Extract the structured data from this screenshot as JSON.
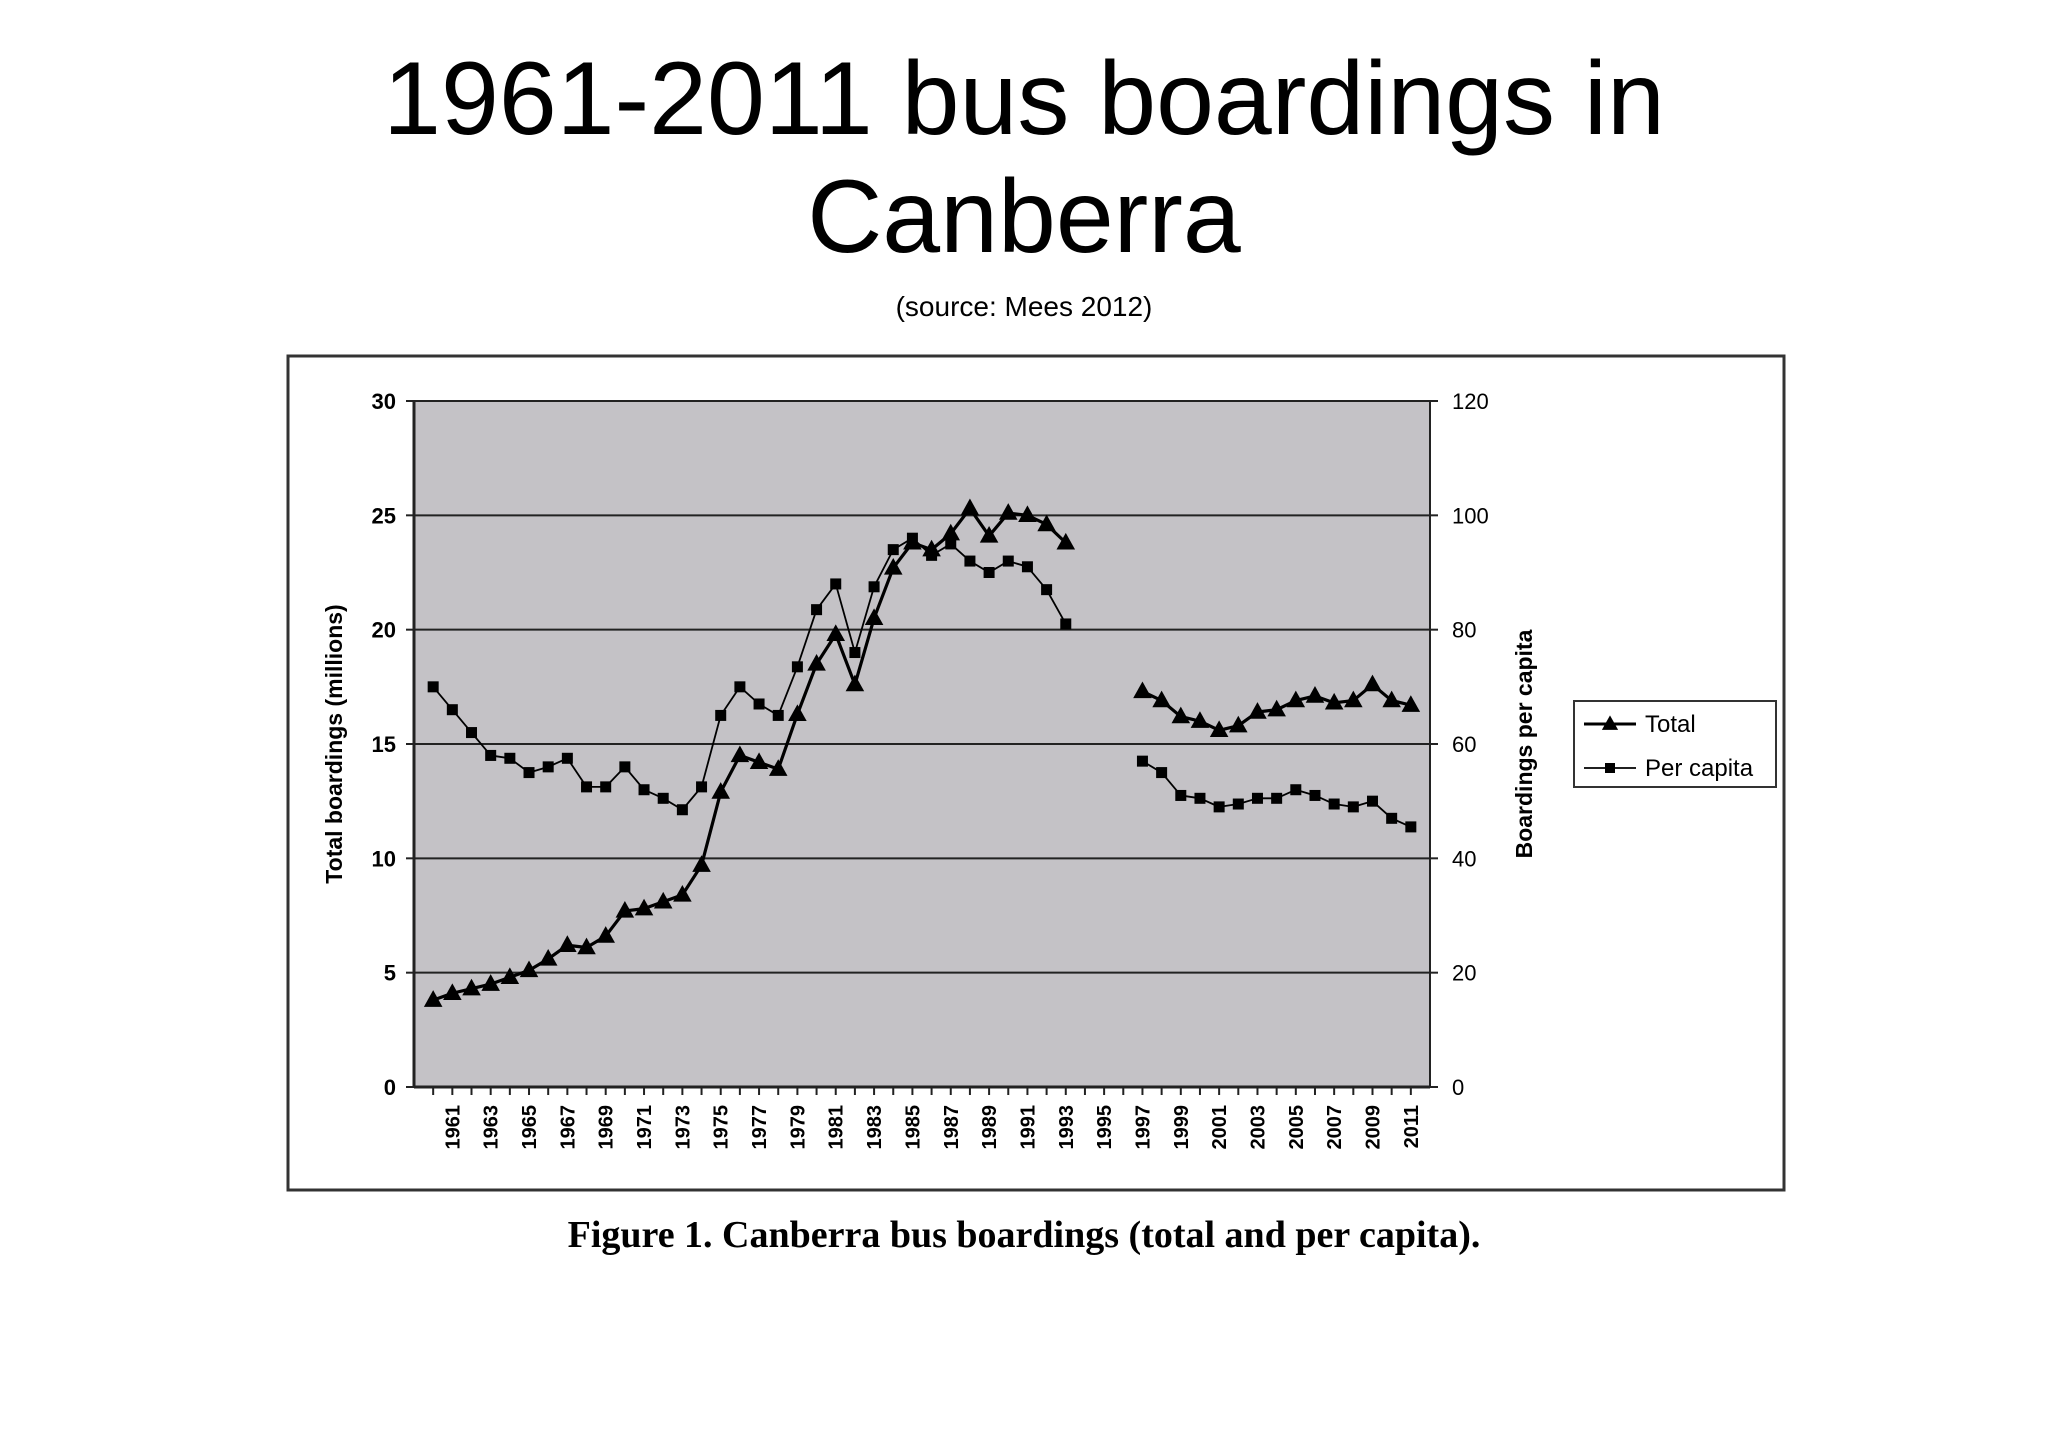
{
  "slide": {
    "title": "1961-2011 bus boardings in Canberra",
    "subtitle": "(source: Mees 2012)",
    "caption": "Figure 1. Canberra bus boardings (total and per capita)."
  },
  "chart_data": {
    "type": "line",
    "title": "",
    "ylabel": "Total boardings (millions)",
    "y2label": "Boardings per capita",
    "ylim": [
      0,
      30
    ],
    "y2lim": [
      0,
      120
    ],
    "yticks": [
      0,
      5,
      10,
      15,
      20,
      25,
      30
    ],
    "y2ticks": [
      0,
      20,
      40,
      60,
      80,
      100,
      120
    ],
    "xticks": [
      "1961",
      "1963",
      "1965",
      "1967",
      "1969",
      "1971",
      "1973",
      "1975",
      "1977",
      "1979",
      "1981",
      "1983",
      "1985",
      "1987",
      "1989",
      "1991",
      "1993",
      "1995",
      "1997",
      "1999",
      "2001",
      "2003",
      "2005",
      "2007",
      "2009",
      "2011"
    ],
    "grid": "horizontal",
    "plot_background": "#c4c2c6",
    "legend_position": "right",
    "series": [
      {
        "name": "Total",
        "axis": "left",
        "marker": "triangle",
        "segments": [
          {
            "x": [
              1960,
              1961,
              1962,
              1963,
              1964,
              1965,
              1966,
              1967,
              1968,
              1969,
              1970,
              1971,
              1972,
              1973,
              1974,
              1975,
              1976,
              1977,
              1978,
              1979,
              1980,
              1981,
              1982,
              1983,
              1984,
              1985,
              1986,
              1987,
              1988,
              1989,
              1990,
              1991,
              1992,
              1993
            ],
            "y": [
              3.8,
              4.1,
              4.3,
              4.5,
              4.8,
              5.1,
              5.6,
              6.2,
              6.1,
              6.6,
              7.7,
              7.8,
              8.1,
              8.4,
              9.7,
              12.9,
              14.5,
              14.2,
              13.9,
              16.3,
              18.5,
              19.8,
              17.6,
              20.5,
              22.7,
              23.8,
              23.5,
              24.2,
              25.3,
              24.1,
              25.1,
              25.0,
              24.6,
              23.8
            ]
          },
          {
            "x": [
              1997,
              1998,
              1999,
              2000,
              2001,
              2002,
              2003,
              2004,
              2005,
              2006,
              2007,
              2008,
              2009,
              2010,
              2011
            ],
            "y": [
              17.3,
              16.9,
              16.2,
              16.0,
              15.6,
              15.8,
              16.4,
              16.5,
              16.9,
              17.1,
              16.8,
              16.9,
              17.6,
              16.9,
              16.7
            ]
          }
        ]
      },
      {
        "name": "Per capita",
        "axis": "right",
        "marker": "square",
        "segments": [
          {
            "x": [
              1960,
              1961,
              1962,
              1963,
              1964,
              1965,
              1966,
              1967,
              1968,
              1969,
              1970,
              1971,
              1972,
              1973,
              1974,
              1975,
              1976,
              1977,
              1978,
              1979,
              1980,
              1981,
              1982,
              1983,
              1984,
              1985,
              1986,
              1987,
              1988,
              1989,
              1990,
              1991,
              1992,
              1993
            ],
            "y": [
              70,
              66,
              62,
              58,
              57.5,
              55,
              56,
              57.5,
              52.5,
              52.5,
              56,
              52,
              50.5,
              48.5,
              52.5,
              65,
              70,
              67,
              65,
              73.5,
              83.5,
              88,
              76,
              87.5,
              94,
              96,
              93,
              95,
              92,
              90,
              92,
              91,
              87,
              81
            ]
          },
          {
            "x": [
              1997,
              1998,
              1999,
              2000,
              2001,
              2002,
              2003,
              2004,
              2005,
              2006,
              2007,
              2008,
              2009,
              2010,
              2011
            ],
            "y": [
              57,
              55,
              51,
              50.5,
              49,
              49.5,
              50.5,
              50.5,
              52,
              51,
              49.5,
              49,
              50,
              47,
              45.5
            ]
          }
        ]
      }
    ]
  }
}
